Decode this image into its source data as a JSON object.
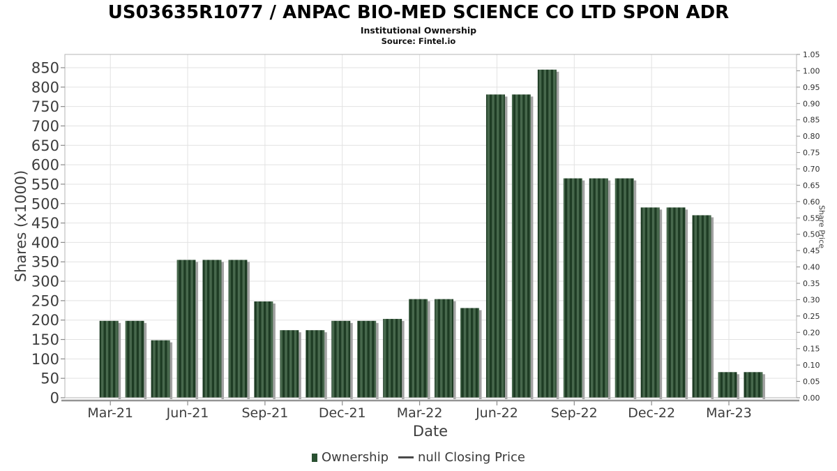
{
  "header": {
    "title": "US03635R1077 / ANPAC BIO-MED SCIENCE CO LTD SPON ADR",
    "subtitle": "Institutional Ownership",
    "source": "Source: Fintel.io"
  },
  "chart_data": {
    "type": "bar",
    "title": "US03635R1077 / ANPAC BIO-MED SCIENCE CO LTD SPON ADR",
    "subtitle": "Institutional Ownership",
    "source": "Source: Fintel.io",
    "xlabel": "Date",
    "ylabel_left": "Shares (x1000)",
    "ylabel_right": "Share Price",
    "x": [
      "Mar-21",
      "Apr-21",
      "May-21",
      "Jun-21",
      "Jul-21",
      "Aug-21",
      "Sep-21",
      "Oct-21",
      "Nov-21",
      "Dec-21",
      "Jan-22",
      "Feb-22",
      "Mar-22",
      "Apr-22",
      "May-22",
      "Jun-22",
      "Jul-22",
      "Aug-22",
      "Sep-22",
      "Oct-22",
      "Nov-22",
      "Dec-22",
      "Jan-23",
      "Feb-23",
      "Mar-23",
      "Apr-23"
    ],
    "series": [
      {
        "name": "Ownership",
        "values": [
          198,
          198,
          148,
          355,
          355,
          355,
          248,
          174,
          174,
          198,
          198,
          203,
          254,
          254,
          231,
          781,
          781,
          845,
          565,
          565,
          565,
          490,
          490,
          470,
          66,
          66
        ]
      },
      {
        "name": "null Closing Price",
        "values": []
      }
    ],
    "x_tick_labels": [
      "Mar-21",
      "Jun-21",
      "Sep-21",
      "Dec-21",
      "Mar-22",
      "Jun-22",
      "Sep-22",
      "Dec-22",
      "Mar-23"
    ],
    "ylim_left": [
      0,
      850
    ],
    "ytick_step_left": 50,
    "ylim_right": [
      0,
      1.05
    ],
    "ytick_step_right": 0.05,
    "grid": true,
    "legend_position": "bottom",
    "legend": [
      {
        "label": "Ownership",
        "marker": "square"
      },
      {
        "label": "null Closing Price",
        "marker": "line"
      }
    ]
  },
  "colors": {
    "bar_stripe_dark": "#1e3c24",
    "bar_stripe_light": "#47684c",
    "bar_shadow": "#a2a2a2",
    "legend_square": "#2a5132",
    "legend_line": "#4a4a4a",
    "grid": "#e2e2e2",
    "plot_border": "#b5b5b5",
    "axis_line": "#949494",
    "tick_text": "#3d3d3d",
    "right_tick_text": "#2e2e2e",
    "title_text": "#000000"
  }
}
